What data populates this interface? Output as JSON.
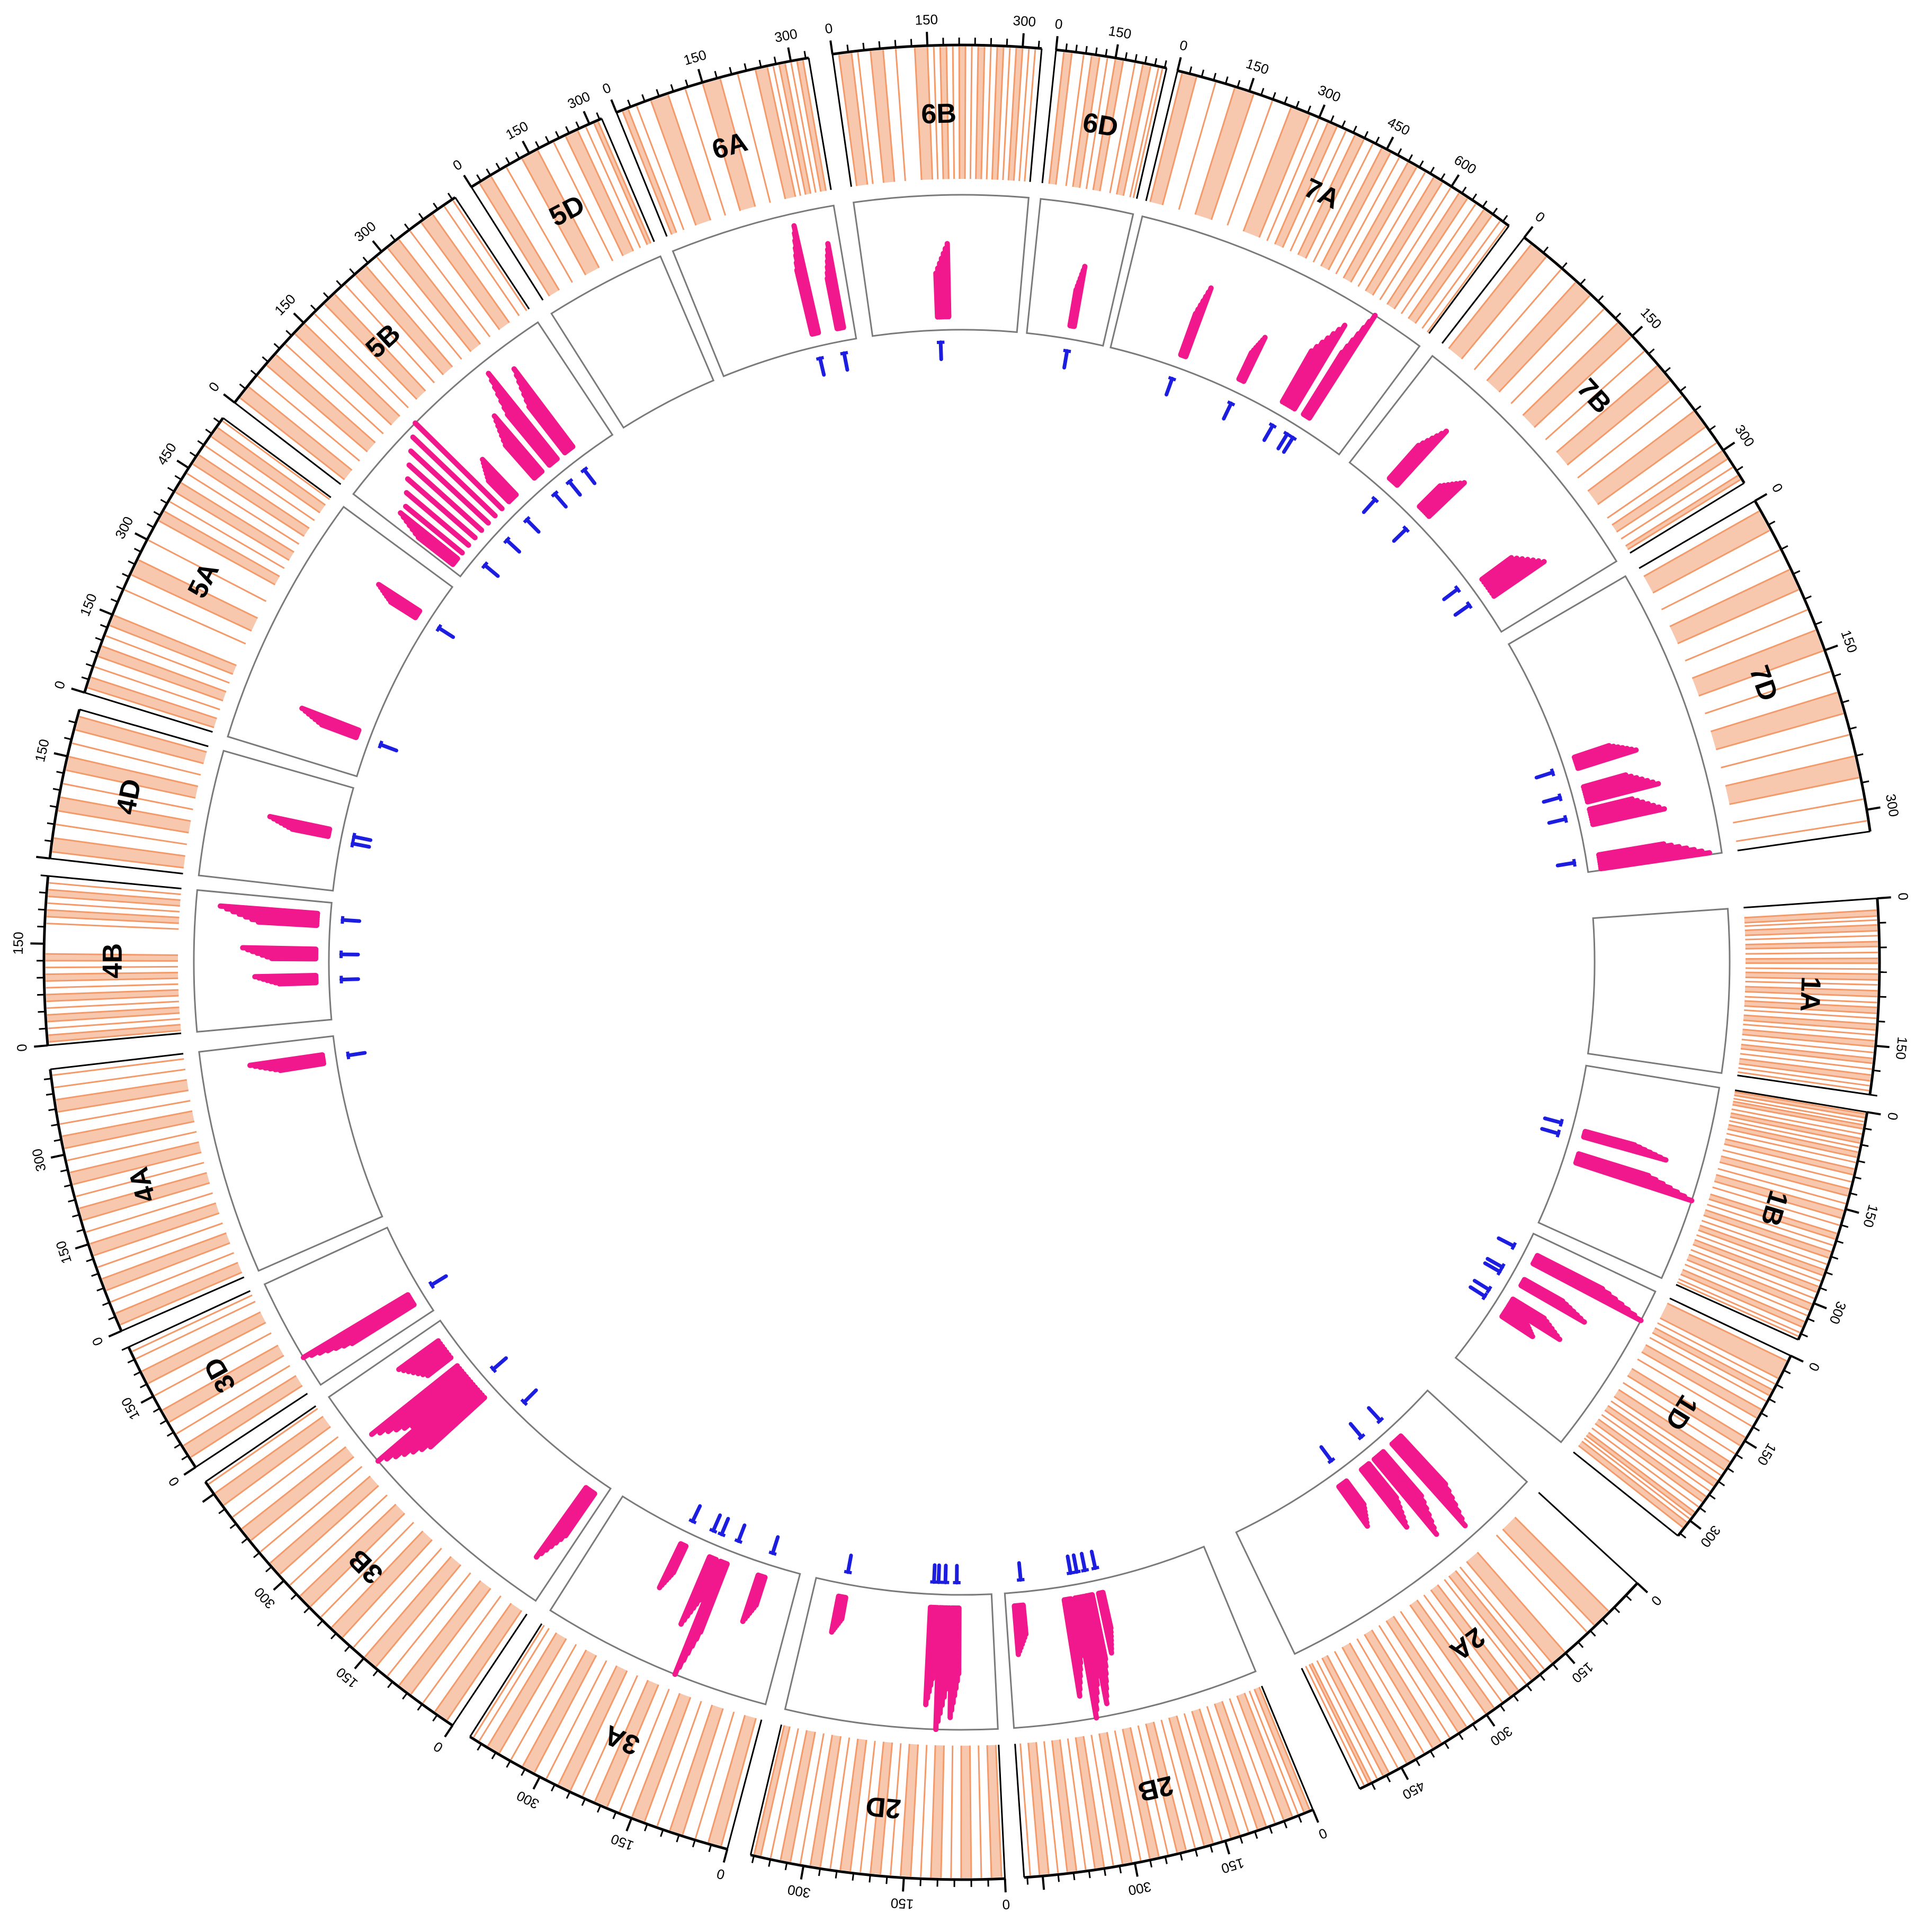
{
  "chart_data": {
    "type": "circos",
    "title": "",
    "units_note": "chromosome positions in Mb",
    "tick_step": 150,
    "minor_tick_step": 25,
    "track_colors": {
      "density": "#f39a6b",
      "segments": "#f0188c",
      "markers": "#1d1de0",
      "axis": "#000000",
      "panel": "#7a7a7a"
    },
    "chromosomes": [
      {
        "name": "1A",
        "start_deg": 86.0,
        "end_deg": 98.3,
        "length": 200,
        "tick_labels": [
          "0",
          "150"
        ],
        "density": [
          12,
          18,
          22,
          27,
          33,
          38,
          44,
          49,
          55,
          61,
          66,
          72,
          77,
          83,
          88,
          94,
          100,
          106,
          111,
          117,
          122,
          128,
          134,
          139,
          145,
          151,
          157,
          163,
          168,
          174,
          180,
          186,
          191,
          196
        ],
        "segments": [],
        "markers": []
      },
      {
        "name": "1B",
        "start_deg": 99.4,
        "end_deg": 114.3,
        "length": 360,
        "tick_labels": [
          "0",
          "150",
          "300"
        ],
        "density": [
          3,
          9,
          15,
          20,
          26,
          34,
          41,
          48,
          55,
          62,
          70,
          78,
          88,
          97,
          108,
          119,
          130,
          142,
          153,
          165,
          176,
          189,
          198,
          208,
          218,
          228,
          238,
          247,
          256,
          265,
          274,
          283,
          293,
          302,
          312,
          321,
          331,
          340,
          349,
          355
        ],
        "segments": [
          {
            "a": 140,
            "b": 152,
            "len": 0.7
          },
          {
            "a": 190,
            "b": 210,
            "len": 1.0
          }
        ],
        "markers": [
          135,
          160
        ]
      },
      {
        "name": "1D",
        "start_deg": 115.4,
        "end_deg": 128.7,
        "length": 330,
        "tick_labels": [
          "0",
          "150",
          "300"
        ],
        "density": [
          10,
          40,
          50,
          60,
          70,
          80,
          95,
          110,
          125,
          145,
          160,
          175,
          190,
          205,
          215,
          225,
          235,
          245,
          255,
          265,
          275,
          285,
          292,
          298,
          305,
          315
        ],
        "segments": [
          {
            "a": 40,
            "b": 60,
            "len": 1.0
          },
          {
            "a": 100,
            "b": 115,
            "len": 0.6
          },
          {
            "a": 150,
            "b": 170,
            "len": 0.5
          },
          {
            "a": 175,
            "b": 195,
            "len": 0.3
          }
        ],
        "markers": [
          45,
          100,
          112,
          160,
          178
        ]
      },
      {
        "name": "2A",
        "start_deg": 132.6,
        "end_deg": 154.3,
        "length": 520,
        "tick_labels": [
          "0",
          "150",
          "300",
          "450"
        ],
        "density": [
          60,
          90,
          105,
          150,
          175,
          190,
          200,
          215,
          225,
          240,
          255,
          270,
          285,
          300,
          320,
          335,
          350,
          365,
          380,
          395,
          410,
          425,
          440,
          455,
          470,
          480,
          490,
          500,
          505,
          512
        ],
        "segments": [
          {
            "a": 110,
            "b": 135,
            "len": 0.9
          },
          {
            "a": 160,
            "b": 185,
            "len": 0.8
          },
          {
            "a": 200,
            "b": 220,
            "len": 0.6
          },
          {
            "a": 260,
            "b": 280,
            "len": 0.4
          }
        ],
        "markers": [
          120,
          175,
          260
        ]
      },
      {
        "name": "2B",
        "start_deg": 157.5,
        "end_deg": 176.1,
        "length": 480,
        "tick_labels": [
          "0",
          "150",
          "300"
        ],
        "density": [
          5,
          15,
          25,
          35,
          50,
          65,
          80,
          95,
          110,
          125,
          140,
          155,
          170,
          185,
          200,
          215,
          230,
          245,
          260,
          275,
          290,
          305,
          320,
          335,
          350,
          365,
          380,
          395,
          410,
          425,
          440,
          455,
          470
        ],
        "segments": [
          {
            "a": 255,
            "b": 265,
            "len": 0.5
          },
          {
            "a": 280,
            "b": 295,
            "len": 0.9
          },
          {
            "a": 300,
            "b": 320,
            "len": 1.0
          },
          {
            "a": 330,
            "b": 345,
            "len": 0.8
          },
          {
            "a": 440,
            "b": 460,
            "len": 0.4
          }
        ],
        "markers": [
          260,
          285,
          305,
          320,
          440
        ]
      },
      {
        "name": "2D",
        "start_deg": 177.3,
        "end_deg": 193.3,
        "length": 380,
        "tick_labels": [
          "0",
          "150",
          "300"
        ],
        "density": [
          5,
          20,
          35,
          50,
          65,
          80,
          95,
          110,
          125,
          140,
          155,
          170,
          185,
          200,
          215,
          230,
          245,
          260,
          275,
          290,
          305,
          320,
          335,
          350,
          365,
          375
        ],
        "segments": [
          {
            "a": 70,
            "b": 85,
            "len": 0.9
          },
          {
            "a": 90,
            "b": 110,
            "len": 1.0
          },
          {
            "a": 115,
            "b": 130,
            "len": 0.8
          },
          {
            "a": 310,
            "b": 325,
            "len": 0.3
          }
        ],
        "markers": [
          75,
          100,
          115,
          125,
          315
        ]
      },
      {
        "name": "3A",
        "start_deg": 194.8,
        "end_deg": 212.4,
        "length": 420,
        "tick_labels": [
          "0",
          "150",
          "300"
        ],
        "density": [
          10,
          30,
          50,
          70,
          90,
          110,
          130,
          150,
          170,
          190,
          210,
          230,
          250,
          270,
          290,
          310,
          330,
          350,
          370,
          390,
          405,
          415
        ],
        "segments": [
          {
            "a": 70,
            "b": 85,
            "len": 0.4
          },
          {
            "a": 155,
            "b": 170,
            "len": 1.0
          },
          {
            "a": 180,
            "b": 195,
            "len": 0.6
          },
          {
            "a": 250,
            "b": 262,
            "len": 0.4
          }
        ],
        "markers": [
          70,
          150,
          190,
          210,
          260
        ]
      },
      {
        "name": "3B",
        "start_deg": 213.7,
        "end_deg": 235.5,
        "length": 470,
        "tick_labels": [
          "0",
          "150",
          "300"
        ],
        "density": [
          10,
          30,
          50,
          70,
          90,
          110,
          130,
          150,
          170,
          190,
          210,
          230,
          250,
          270,
          290,
          310,
          330,
          350,
          370,
          390,
          410,
          430,
          450,
          465
        ],
        "segments": [
          {
            "a": 20,
            "b": 40,
            "len": 0.7
          },
          {
            "a": 300,
            "b": 340,
            "len": 1.0
          },
          {
            "a": 340,
            "b": 380,
            "len": 0.9
          },
          {
            "a": 400,
            "b": 440,
            "len": 0.4
          }
        ],
        "markers": [
          240,
          330
        ]
      },
      {
        "name": "3D",
        "start_deg": 236.6,
        "end_deg": 245.2,
        "length": 250,
        "tick_labels": [
          "0",
          "150"
        ],
        "density": [
          20,
          45,
          70,
          95,
          120,
          150,
          175,
          200,
          225,
          240
        ],
        "segments": [
          {
            "a": 40,
            "b": 70,
            "len": 1.0
          }
        ],
        "markers": [
          60
        ]
      },
      {
        "name": "4A",
        "start_deg": 246.3,
        "end_deg": 263.3,
        "length": 440,
        "tick_labels": [
          "0",
          "150",
          "300"
        ],
        "density": [
          10,
          30,
          50,
          70,
          90,
          110,
          130,
          150,
          170,
          190,
          210,
          230,
          250,
          270,
          290,
          310,
          330,
          350,
          370,
          390,
          410,
          430
        ],
        "segments": [
          {
            "a": 380,
            "b": 400,
            "len": 0.6
          }
        ],
        "markers": [
          390
        ]
      },
      {
        "name": "4B",
        "start_deg": 264.8,
        "end_deg": 275.4,
        "length": 250,
        "tick_labels": [
          "0",
          "150"
        ],
        "density": [
          5,
          15,
          25,
          35,
          45,
          55,
          65,
          75,
          85,
          95,
          105,
          115,
          125,
          135,
          180,
          190,
          200,
          210,
          220,
          230,
          240
        ],
        "segments": [
          {
            "a": 80,
            "b": 95,
            "len": 0.5
          },
          {
            "a": 130,
            "b": 150,
            "len": 0.6
          },
          {
            "a": 200,
            "b": 225,
            "len": 0.8
          }
        ],
        "markers": [
          85,
          140,
          215
        ]
      },
      {
        "name": "4D",
        "start_deg": 276.5,
        "end_deg": 286.0,
        "length": 220,
        "tick_labels": [
          "150"
        ],
        "density": [
          10,
          30,
          50,
          70,
          90,
          110,
          130,
          150,
          170,
          190,
          210
        ],
        "segments": [
          {
            "a": 110,
            "b": 125,
            "len": 0.5
          }
        ],
        "markers": [
          105,
          120
        ]
      },
      {
        "name": "5A",
        "start_deg": 287.1,
        "end_deg": 306.4,
        "length": 560,
        "tick_labels": [
          "0",
          "150",
          "300",
          "450"
        ],
        "density": [
          10,
          30,
          50,
          70,
          90,
          110,
          130,
          150,
          200,
          230,
          260,
          300,
          340,
          360,
          380,
          400,
          420,
          440,
          460,
          480,
          500,
          520,
          540,
          555
        ],
        "segments": [
          {
            "a": 95,
            "b": 115,
            "len": 0.5
          },
          {
            "a": 440,
            "b": 460,
            "len": 0.4
          }
        ],
        "markers": [
          100,
          450
        ]
      },
      {
        "name": "5B",
        "start_deg": 307.6,
        "end_deg": 326.5,
        "length": 430,
        "tick_labels": [
          "0",
          "150",
          "300"
        ],
        "density": [
          10,
          30,
          50,
          70,
          90,
          110,
          130,
          150,
          170,
          190,
          210,
          230,
          250,
          270,
          290,
          310,
          330,
          350,
          370,
          390,
          410,
          425
        ],
        "segments": [
          {
            "a": 10,
            "b": 25,
            "len": 0.6
          },
          {
            "a": 40,
            "b": 160,
            "len": 1.0
          },
          {
            "a": 180,
            "b": 200,
            "len": 0.4
          },
          {
            "a": 250,
            "b": 270,
            "len": 0.6
          },
          {
            "a": 290,
            "b": 310,
            "len": 0.9
          },
          {
            "a": 330,
            "b": 350,
            "len": 0.8
          }
        ],
        "markers": [
          50,
          120,
          180,
          260,
          300,
          340
        ]
      },
      {
        "name": "5D",
        "start_deg": 327.7,
        "end_deg": 336.9,
        "length": 330,
        "tick_labels": [
          "0",
          "150",
          "300"
        ],
        "density": [
          20,
          50,
          90,
          130,
          170,
          210,
          240,
          270,
          290,
          310,
          320
        ],
        "segments": [],
        "markers": []
      },
      {
        "name": "6A",
        "start_deg": 337.9,
        "end_deg": 350.4,
        "length": 330,
        "tick_labels": [
          "0",
          "150",
          "300"
        ],
        "density": [
          10,
          20,
          35,
          60,
          90,
          120,
          150,
          180,
          210,
          240,
          260,
          270,
          280,
          290,
          300,
          310,
          320
        ],
        "segments": [
          {
            "a": 230,
            "b": 245,
            "len": 0.9
          },
          {
            "a": 290,
            "b": 305,
            "len": 0.7
          }
        ],
        "markers": [
          235,
          295
        ]
      },
      {
        "name": "6B",
        "start_deg": 351.9,
        "end_deg": 365.0,
        "length": 330,
        "tick_labels": [
          "0",
          "150",
          "300"
        ],
        "density": [
          10,
          30,
          40,
          60,
          80,
          100,
          130,
          150,
          160,
          170,
          180,
          190,
          200,
          210,
          220,
          230,
          240,
          250,
          260,
          270,
          280,
          290,
          300,
          310,
          320
        ],
        "segments": [
          {
            "a": 150,
            "b": 175,
            "len": 0.6
          }
        ],
        "markers": [
          155
        ]
      },
      {
        "name": "6D",
        "start_deg": 365.9,
        "end_deg": 372.9,
        "length": 280,
        "tick_labels": [
          "0",
          "150"
        ],
        "density": [
          20,
          40,
          70,
          90,
          110,
          130,
          150,
          170,
          200,
          220,
          240,
          260,
          270
        ],
        "segments": [
          {
            "a": 150,
            "b": 165,
            "len": 0.5
          }
        ],
        "markers": [
          155
        ]
      },
      {
        "name": "7A",
        "start_deg": 373.6,
        "end_deg": 396.6,
        "length": 740,
        "tick_labels": [
          "0",
          "150",
          "300",
          "450",
          "600"
        ],
        "density": [
          10,
          40,
          80,
          120,
          160,
          200,
          240,
          280,
          300,
          320,
          340,
          360,
          380,
          400,
          420,
          440,
          460,
          480,
          500,
          520,
          540,
          560,
          580,
          600,
          620,
          640,
          660,
          680,
          700,
          720,
          735
        ],
        "segments": [
          {
            "a": 200,
            "b": 215,
            "len": 0.6
          },
          {
            "a": 380,
            "b": 395,
            "len": 0.4
          },
          {
            "a": 520,
            "b": 560,
            "len": 0.8
          },
          {
            "a": 590,
            "b": 610,
            "len": 1.0
          }
        ],
        "markers": [
          200,
          390,
          530,
          580,
          600
        ]
      },
      {
        "name": "7B",
        "start_deg": 397.8,
        "end_deg": 418.5,
        "length": 340,
        "tick_labels": [
          "0",
          "150",
          "300"
        ],
        "density": [
          10,
          30,
          50,
          70,
          90,
          110,
          130,
          150,
          170,
          190,
          210,
          230,
          250,
          270,
          290,
          300,
          310,
          320,
          330,
          335
        ],
        "segments": [
          {
            "a": 60,
            "b": 75,
            "len": 0.6
          },
          {
            "a": 120,
            "b": 140,
            "len": 0.4
          },
          {
            "a": 260,
            "b": 290,
            "len": 0.5
          }
        ],
        "markers": [
          65,
          130,
          250,
          280
        ]
      },
      {
        "name": "7D",
        "start_deg": 419.8,
        "end_deg": 441.8,
        "length": 320,
        "tick_labels": [
          "0",
          "150",
          "300"
        ],
        "density": [
          10,
          30,
          50,
          70,
          90,
          110,
          130,
          150,
          170,
          190,
          210,
          230,
          250,
          270,
          290,
          310
        ],
        "segments": [
          {
            "a": 170,
            "b": 185,
            "len": 0.5
          },
          {
            "a": 210,
            "b": 230,
            "len": 0.6
          },
          {
            "a": 240,
            "b": 260,
            "len": 0.6
          },
          {
            "a": 300,
            "b": 318,
            "len": 0.9
          }
        ],
        "markers": [
          180,
          215,
          245,
          305
        ]
      }
    ]
  }
}
